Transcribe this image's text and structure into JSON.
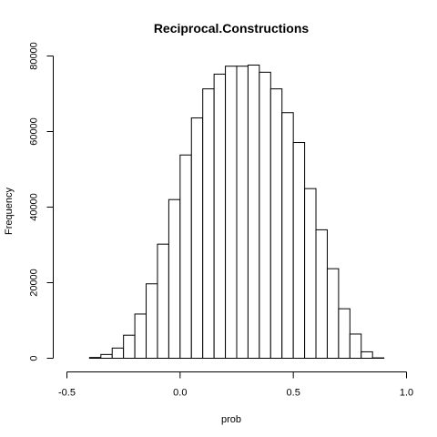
{
  "chart_data": {
    "type": "bar",
    "title": "Reciprocal.Constructions",
    "xlabel": "prob",
    "ylabel": "Frequency",
    "xlim": [
      -0.5,
      1.0
    ],
    "ylim": [
      0,
      80000
    ],
    "xticks": [
      "-0.5",
      "0.0",
      "0.5",
      "1.0"
    ],
    "yticks": [
      "0",
      "20000",
      "40000",
      "60000",
      "80000"
    ],
    "grid": false,
    "bin_width": 0.05,
    "bins": [
      {
        "x0": -0.4,
        "x1": -0.35,
        "value": 200
      },
      {
        "x0": -0.35,
        "x1": -0.3,
        "value": 1000
      },
      {
        "x0": -0.3,
        "x1": -0.25,
        "value": 2700
      },
      {
        "x0": -0.25,
        "x1": -0.2,
        "value": 6100
      },
      {
        "x0": -0.2,
        "x1": -0.15,
        "value": 11700
      },
      {
        "x0": -0.15,
        "x1": -0.1,
        "value": 19700
      },
      {
        "x0": -0.1,
        "x1": -0.05,
        "value": 30200
      },
      {
        "x0": -0.05,
        "x1": 0.0,
        "value": 42000
      },
      {
        "x0": 0.0,
        "x1": 0.05,
        "value": 53800
      },
      {
        "x0": 0.05,
        "x1": 0.1,
        "value": 63600
      },
      {
        "x0": 0.1,
        "x1": 0.15,
        "value": 71300
      },
      {
        "x0": 0.15,
        "x1": 0.2,
        "value": 75200
      },
      {
        "x0": 0.2,
        "x1": 0.25,
        "value": 77300
      },
      {
        "x0": 0.25,
        "x1": 0.3,
        "value": 77300
      },
      {
        "x0": 0.3,
        "x1": 0.35,
        "value": 77600
      },
      {
        "x0": 0.35,
        "x1": 0.4,
        "value": 75700
      },
      {
        "x0": 0.4,
        "x1": 0.45,
        "value": 71300
      },
      {
        "x0": 0.45,
        "x1": 0.5,
        "value": 65000
      },
      {
        "x0": 0.5,
        "x1": 0.55,
        "value": 57100
      },
      {
        "x0": 0.55,
        "x1": 0.6,
        "value": 44900
      },
      {
        "x0": 0.6,
        "x1": 0.65,
        "value": 34000
      },
      {
        "x0": 0.65,
        "x1": 0.7,
        "value": 23700
      },
      {
        "x0": 0.7,
        "x1": 0.75,
        "value": 13100
      },
      {
        "x0": 0.75,
        "x1": 0.8,
        "value": 6400
      },
      {
        "x0": 0.8,
        "x1": 0.85,
        "value": 1700
      },
      {
        "x0": 0.85,
        "x1": 0.9,
        "value": 100
      }
    ]
  }
}
